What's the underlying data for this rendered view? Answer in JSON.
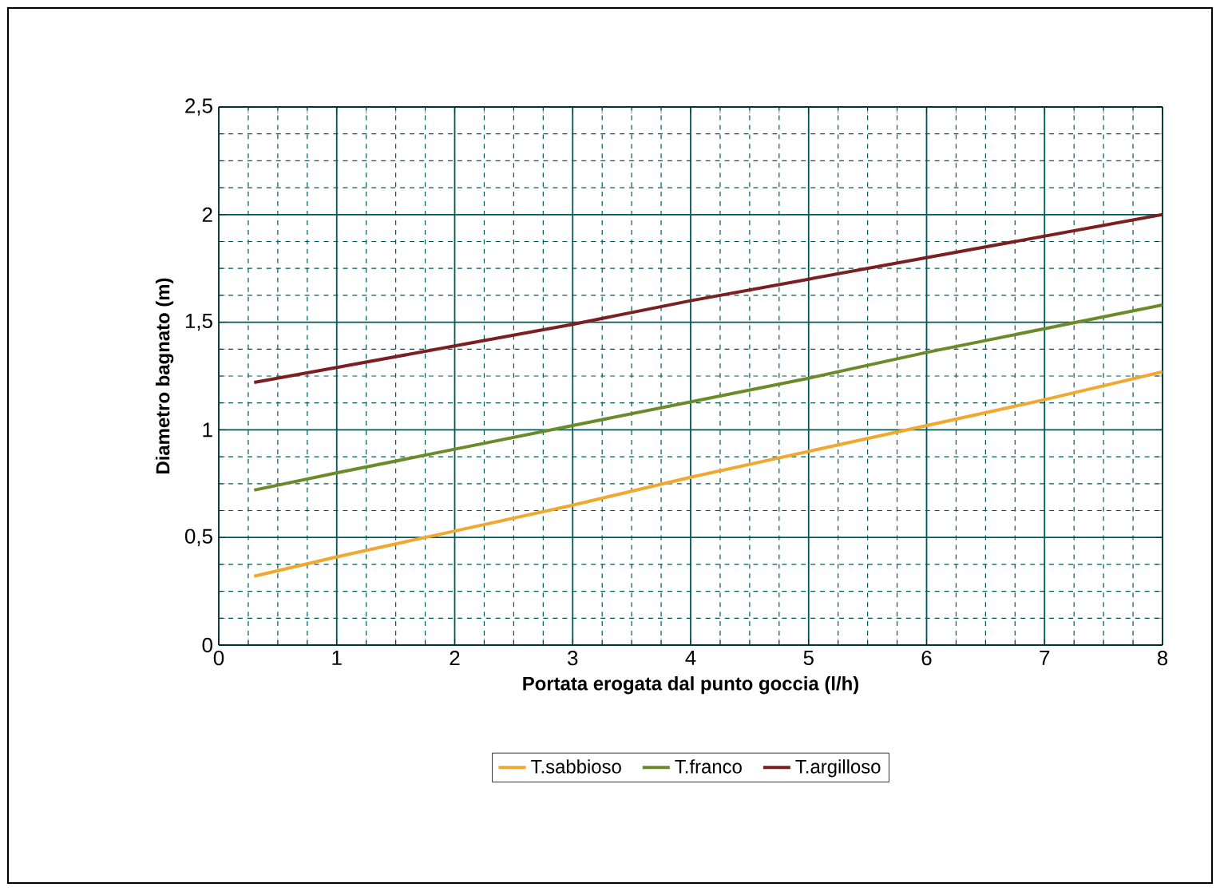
{
  "chart_data": {
    "type": "line",
    "xlabel": "Portata erogata dal punto goccia  (l/h)",
    "ylabel": "Diametro bagnato (m)",
    "series": [
      {
        "name": "T.sabbioso",
        "color": "#f0a830",
        "x": [
          0.3,
          1,
          2,
          3,
          4,
          5,
          6,
          7,
          8
        ],
        "values": [
          0.32,
          0.41,
          0.53,
          0.65,
          0.78,
          0.9,
          1.02,
          1.14,
          1.27
        ]
      },
      {
        "name": "T.franco",
        "color": "#6b8a2a",
        "x": [
          0.3,
          1,
          2,
          3,
          4,
          5,
          6,
          7,
          8
        ],
        "values": [
          0.72,
          0.8,
          0.91,
          1.02,
          1.13,
          1.24,
          1.36,
          1.47,
          1.58
        ]
      },
      {
        "name": "T.argilloso",
        "color": "#7a1f22",
        "x": [
          0.3,
          1,
          2,
          3,
          4,
          5,
          6,
          7,
          8
        ],
        "values": [
          1.22,
          1.29,
          1.39,
          1.49,
          1.6,
          1.7,
          1.8,
          1.9,
          2.0
        ]
      }
    ],
    "xlim": [
      0,
      8
    ],
    "ylim": [
      0,
      2.5
    ],
    "xticks": [
      0,
      {
        "value": 0.25,
        "label": null
      },
      {
        "value": 0.5,
        "label": null
      },
      {
        "value": 0.75,
        "label": null
      },
      1,
      {
        "value": 1.25,
        "label": null
      },
      {
        "value": 1.5,
        "label": null
      },
      {
        "value": 1.75,
        "label": null
      },
      2,
      {
        "value": 2.25,
        "label": null
      },
      {
        "value": 2.5,
        "label": null
      },
      {
        "value": 2.75,
        "label": null
      },
      3,
      {
        "value": 3.25,
        "label": null
      },
      {
        "value": 3.5,
        "label": null
      },
      {
        "value": 3.75,
        "label": null
      },
      4,
      {
        "value": 4.25,
        "label": null
      },
      {
        "value": 4.5,
        "label": null
      },
      {
        "value": 4.75,
        "label": null
      },
      5,
      {
        "value": 5.25,
        "label": null
      },
      {
        "value": 5.5,
        "label": null
      },
      {
        "value": 5.75,
        "label": null
      },
      6,
      {
        "value": 6.25,
        "label": null
      },
      {
        "value": 6.5,
        "label": null
      },
      {
        "value": 6.75,
        "label": null
      },
      7,
      {
        "value": 7.25,
        "label": null
      },
      {
        "value": 7.5,
        "label": null
      },
      {
        "value": 7.75,
        "label": null
      },
      8
    ],
    "yticks": [
      0,
      {
        "value": 0.125,
        "label": null
      },
      {
        "value": 0.25,
        "label": null
      },
      {
        "value": 0.375,
        "label": null
      },
      {
        "value": 0.5,
        "label": "0,5"
      },
      {
        "value": 0.625,
        "label": null
      },
      {
        "value": 0.75,
        "label": null
      },
      {
        "value": 0.875,
        "label": null
      },
      1,
      {
        "value": 1.125,
        "label": null
      },
      {
        "value": 1.25,
        "label": null
      },
      {
        "value": 1.375,
        "label": null
      },
      {
        "value": 1.5,
        "label": "1,5"
      },
      {
        "value": 1.625,
        "label": null
      },
      {
        "value": 1.75,
        "label": null
      },
      {
        "value": 1.875,
        "label": null
      },
      2,
      {
        "value": 2.125,
        "label": null
      },
      {
        "value": 2.25,
        "label": null
      },
      {
        "value": 2.375,
        "label": null
      },
      {
        "value": 2.5,
        "label": "2,5"
      }
    ],
    "grid": true,
    "legend": "bottom",
    "marker": "none",
    "line_style": "solid"
  }
}
